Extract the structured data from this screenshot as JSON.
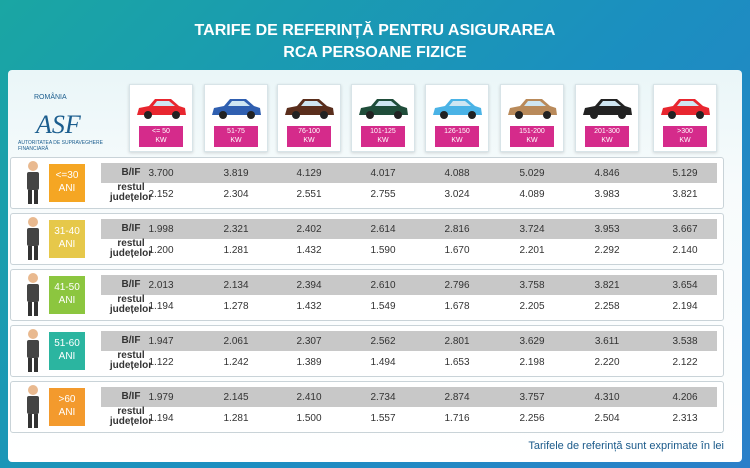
{
  "header": {
    "title_line1": "TARIFE DE REFERINȚĂ PENTRU ASIGURAREA",
    "title_line2": "RCA PERSOANE FIZICE"
  },
  "logo": {
    "country": "ROMÂNIA",
    "acronym": "ASF",
    "name": "AUTORITATEA DE SUPRAVEGHERE FINANCIARĂ"
  },
  "columns": [
    {
      "label": "<= 50",
      "unit": "KW",
      "color": "#e8262f"
    },
    {
      "label": "51-75",
      "unit": "KW",
      "color": "#2f5fb0"
    },
    {
      "label": "76-100",
      "unit": "KW",
      "color": "#5a2e1c"
    },
    {
      "label": "101-125",
      "unit": "KW",
      "color": "#1f4d3a"
    },
    {
      "label": "126-150",
      "unit": "KW",
      "color": "#4ab3e6"
    },
    {
      "label": "151-200",
      "unit": "KW",
      "color": "#b98a5a"
    },
    {
      "label": "201-300",
      "unit": "KW",
      "color": "#222222"
    },
    {
      "label": ">300",
      "unit": "KW",
      "color": "#e8262f"
    }
  ],
  "groups": [
    {
      "age": "<=30",
      "unit": "ANI",
      "color": "#f5a623",
      "labels": [
        "B/IF",
        "restul județelor"
      ],
      "rows": [
        [
          "3.700",
          "3.819",
          "4.129",
          "4.017",
          "4.088",
          "5.029",
          "4.846",
          "5.129"
        ],
        [
          "2.152",
          "2.304",
          "2.551",
          "2.755",
          "3.024",
          "4.089",
          "3.983",
          "3.821"
        ]
      ]
    },
    {
      "age": "31-40",
      "unit": "ANI",
      "color": "#e6c84a",
      "labels": [
        "B/IF",
        "restul județelor"
      ],
      "rows": [
        [
          "1.998",
          "2.321",
          "2.402",
          "2.614",
          "2.816",
          "3.724",
          "3.953",
          "3.667"
        ],
        [
          "1.200",
          "1.281",
          "1.432",
          "1.590",
          "1.670",
          "2.201",
          "2.292",
          "2.140"
        ]
      ]
    },
    {
      "age": "41-50",
      "unit": "ANI",
      "color": "#8cc63f",
      "labels": [
        "B/IF",
        "restul județelor"
      ],
      "rows": [
        [
          "2.013",
          "2.134",
          "2.394",
          "2.610",
          "2.796",
          "3.758",
          "3.821",
          "3.654"
        ],
        [
          "1.194",
          "1.278",
          "1.432",
          "1.549",
          "1.678",
          "2.205",
          "2.258",
          "2.194"
        ]
      ]
    },
    {
      "age": "51-60",
      "unit": "ANI",
      "color": "#2bb5a0",
      "labels": [
        "B/IF",
        "restul județelor"
      ],
      "rows": [
        [
          "1.947",
          "2.061",
          "2.307",
          "2.562",
          "2.801",
          "3.629",
          "3.611",
          "3.538"
        ],
        [
          "1.122",
          "1.242",
          "1.389",
          "1.494",
          "1.653",
          "2.198",
          "2.220",
          "2.122"
        ]
      ]
    },
    {
      "age": ">60",
      "unit": "ANI",
      "color": "#f39a2d",
      "labels": [
        "B/IF",
        "restul județelor"
      ],
      "rows": [
        [
          "1.979",
          "2.145",
          "2.410",
          "2.734",
          "2.874",
          "3.757",
          "4.310",
          "4.206"
        ],
        [
          "1.194",
          "1.281",
          "1.500",
          "1.557",
          "1.716",
          "2.256",
          "2.504",
          "2.313"
        ]
      ]
    }
  ],
  "footer": "Tarifele de referință sunt exprimate în lei"
}
